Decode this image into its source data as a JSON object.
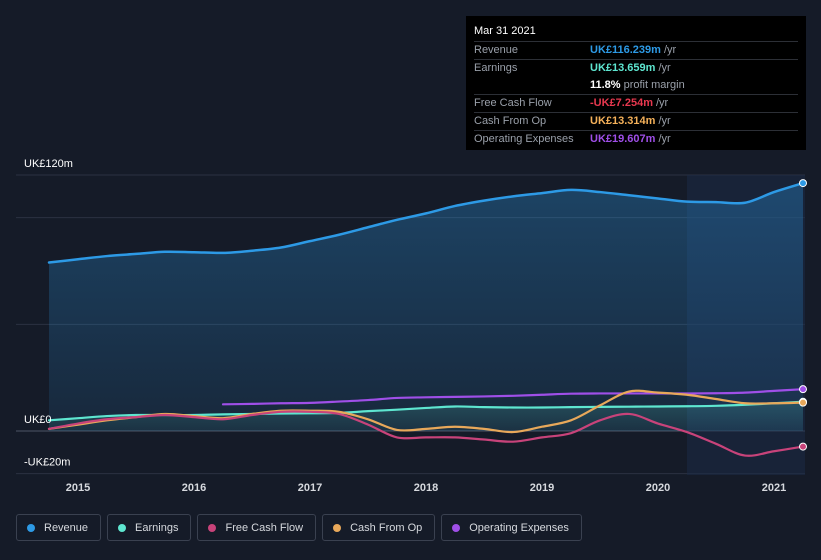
{
  "tooltip": {
    "date": "Mar 31 2021",
    "rows": [
      {
        "label": "Revenue",
        "value": "UK£116.239m",
        "unit": "/yr",
        "color": "#2d9ae6"
      },
      {
        "label": "Earnings",
        "value": "UK£13.659m",
        "unit": "/yr",
        "color": "#5ee6d0"
      },
      {
        "label": "",
        "value": "11.8%",
        "unit": "profit margin",
        "color": "#ffffff"
      },
      {
        "label": "Free Cash Flow",
        "value": "-UK£7.254m",
        "unit": "/yr",
        "color": "#e8384f"
      },
      {
        "label": "Cash From Op",
        "value": "UK£13.314m",
        "unit": "/yr",
        "color": "#f5b15a"
      },
      {
        "label": "Operating Expenses",
        "value": "UK£19.607m",
        "unit": "/yr",
        "color": "#9f4fe8"
      }
    ]
  },
  "legend": [
    {
      "label": "Revenue",
      "color": "#2d9ae6"
    },
    {
      "label": "Earnings",
      "color": "#5ee6d0"
    },
    {
      "label": "Free Cash Flow",
      "color": "#c8437a"
    },
    {
      "label": "Cash From Op",
      "color": "#e8a85a"
    },
    {
      "label": "Operating Expenses",
      "color": "#9f4fe8"
    }
  ],
  "chart_data": {
    "type": "area",
    "ylim": [
      -20,
      120
    ],
    "y_tick_labels": [
      {
        "value": 120,
        "label": "UK£120m"
      },
      {
        "value": 0,
        "label": "UK£0"
      },
      {
        "value": -20,
        "label": "-UK£20m"
      }
    ],
    "x_ticks": [
      2015,
      2016,
      2017,
      2018,
      2019,
      2020,
      2021
    ],
    "xlim": [
      2014.5,
      2021.25
    ],
    "highlight_from": 2020.25,
    "grid": true,
    "series": [
      {
        "name": "Revenue",
        "color": "#2d9ae6",
        "fill": true,
        "points": [
          [
            2014.75,
            79
          ],
          [
            2015.0,
            80.5
          ],
          [
            2015.25,
            82
          ],
          [
            2015.5,
            83
          ],
          [
            2015.75,
            84
          ],
          [
            2016.0,
            83.8
          ],
          [
            2016.25,
            83.5
          ],
          [
            2016.5,
            84.5
          ],
          [
            2016.75,
            86
          ],
          [
            2017.0,
            89
          ],
          [
            2017.25,
            92
          ],
          [
            2017.5,
            95.5
          ],
          [
            2017.75,
            99
          ],
          [
            2018.0,
            102
          ],
          [
            2018.25,
            105.5
          ],
          [
            2018.5,
            108
          ],
          [
            2018.75,
            110
          ],
          [
            2019.0,
            111.5
          ],
          [
            2019.25,
            113
          ],
          [
            2019.5,
            112
          ],
          [
            2019.75,
            110.5
          ],
          [
            2020.0,
            109
          ],
          [
            2020.25,
            107.5
          ],
          [
            2020.5,
            107.3
          ],
          [
            2020.75,
            107
          ],
          [
            2021.0,
            112
          ],
          [
            2021.25,
            116.2
          ]
        ]
      },
      {
        "name": "Earnings",
        "color": "#5ee6d0",
        "fill": false,
        "points": [
          [
            2014.75,
            5
          ],
          [
            2015.0,
            6
          ],
          [
            2015.25,
            7
          ],
          [
            2015.5,
            7.5
          ],
          [
            2015.75,
            7.5
          ],
          [
            2016.0,
            7.5
          ],
          [
            2016.25,
            7.8
          ],
          [
            2016.5,
            8
          ],
          [
            2016.75,
            8.2
          ],
          [
            2017.0,
            8.3
          ],
          [
            2017.25,
            8.5
          ],
          [
            2017.5,
            9.3
          ],
          [
            2017.75,
            10
          ],
          [
            2018.0,
            10.8
          ],
          [
            2018.25,
            11.5
          ],
          [
            2018.5,
            11.2
          ],
          [
            2018.75,
            11
          ],
          [
            2019.0,
            11
          ],
          [
            2019.25,
            11.2
          ],
          [
            2019.5,
            11.3
          ],
          [
            2019.75,
            11.4
          ],
          [
            2020.0,
            11.5
          ],
          [
            2020.25,
            11.6
          ],
          [
            2020.5,
            11.8
          ],
          [
            2020.75,
            12.3
          ],
          [
            2021.0,
            13
          ],
          [
            2021.25,
            13.7
          ]
        ]
      },
      {
        "name": "Free Cash Flow",
        "color": "#c8437a",
        "fill": false,
        "points": [
          [
            2014.75,
            1
          ],
          [
            2015.0,
            3.5
          ],
          [
            2015.25,
            5.5
          ],
          [
            2015.5,
            6.5
          ],
          [
            2015.75,
            7.5
          ],
          [
            2016.0,
            6.5
          ],
          [
            2016.25,
            5.5
          ],
          [
            2016.5,
            7.5
          ],
          [
            2016.75,
            9
          ],
          [
            2017.0,
            9
          ],
          [
            2017.25,
            8
          ],
          [
            2017.5,
            3
          ],
          [
            2017.75,
            -3
          ],
          [
            2018.0,
            -3
          ],
          [
            2018.25,
            -3
          ],
          [
            2018.5,
            -4
          ],
          [
            2018.75,
            -5
          ],
          [
            2019.0,
            -3
          ],
          [
            2019.25,
            -1
          ],
          [
            2019.5,
            5
          ],
          [
            2019.75,
            8
          ],
          [
            2020.0,
            3.5
          ],
          [
            2020.25,
            -0.5
          ],
          [
            2020.5,
            -6
          ],
          [
            2020.75,
            -11.5
          ],
          [
            2021.0,
            -9.5
          ],
          [
            2021.25,
            -7.3
          ]
        ]
      },
      {
        "name": "Cash From Op",
        "color": "#e8a85a",
        "fill": false,
        "points": [
          [
            2014.75,
            1
          ],
          [
            2015.0,
            3
          ],
          [
            2015.25,
            5
          ],
          [
            2015.5,
            6.5
          ],
          [
            2015.75,
            8
          ],
          [
            2016.0,
            7
          ],
          [
            2016.25,
            6
          ],
          [
            2016.5,
            8
          ],
          [
            2016.75,
            9.5
          ],
          [
            2017.0,
            9.5
          ],
          [
            2017.25,
            9
          ],
          [
            2017.5,
            5.5
          ],
          [
            2017.75,
            0.5
          ],
          [
            2018.0,
            1
          ],
          [
            2018.25,
            2
          ],
          [
            2018.5,
            1
          ],
          [
            2018.75,
            -0.5
          ],
          [
            2019.0,
            2
          ],
          [
            2019.25,
            5
          ],
          [
            2019.5,
            12
          ],
          [
            2019.75,
            18.5
          ],
          [
            2020.0,
            18
          ],
          [
            2020.25,
            17
          ],
          [
            2020.5,
            15
          ],
          [
            2020.75,
            13
          ],
          [
            2021.0,
            13
          ],
          [
            2021.25,
            13.3
          ]
        ]
      },
      {
        "name": "Operating Expenses",
        "color": "#9f4fe8",
        "fill": false,
        "points": [
          [
            2016.25,
            12.5
          ],
          [
            2016.5,
            12.7
          ],
          [
            2016.75,
            13
          ],
          [
            2017.0,
            13.2
          ],
          [
            2017.25,
            13.8
          ],
          [
            2017.5,
            14.5
          ],
          [
            2017.75,
            15.5
          ],
          [
            2018.0,
            15.8
          ],
          [
            2018.25,
            16
          ],
          [
            2018.5,
            16.2
          ],
          [
            2018.75,
            16.5
          ],
          [
            2019.0,
            17
          ],
          [
            2019.25,
            17.5
          ],
          [
            2019.5,
            17.6
          ],
          [
            2019.75,
            17.6
          ],
          [
            2020.0,
            17.6
          ],
          [
            2020.25,
            17.6
          ],
          [
            2020.5,
            17.7
          ],
          [
            2020.75,
            18
          ],
          [
            2021.0,
            18.8
          ],
          [
            2021.25,
            19.6
          ]
        ]
      }
    ]
  }
}
